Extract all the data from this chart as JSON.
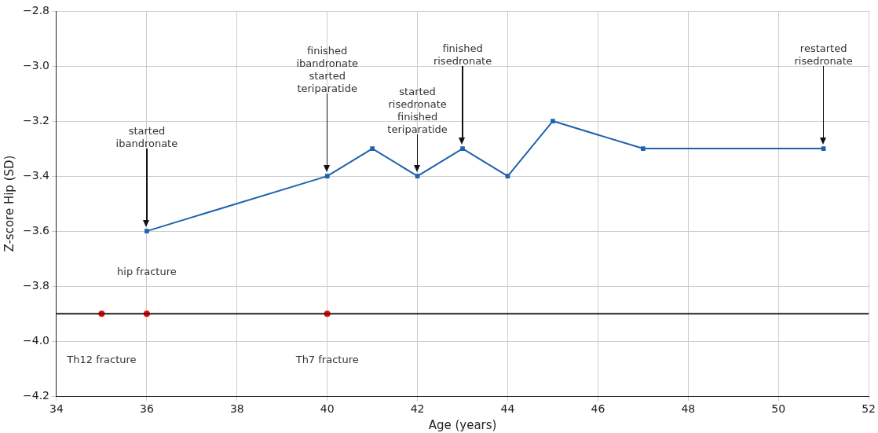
{
  "chart_data": {
    "type": "line",
    "xlabel": "Age (years)",
    "ylabel": "Z-score Hip (SD)",
    "xlim": [
      34,
      52
    ],
    "xticks": [
      34,
      36,
      38,
      40,
      42,
      44,
      46,
      48,
      50,
      52
    ],
    "ylim": [
      -4.2,
      -2.8
    ],
    "yticks": [
      {
        "value": -4.2,
        "label": "−4.2"
      },
      {
        "value": -4.0,
        "label": "−4.0"
      },
      {
        "value": -3.8,
        "label": "−3.8"
      },
      {
        "value": -3.6,
        "label": "−3.6"
      },
      {
        "value": -3.4,
        "label": "−3.4"
      },
      {
        "value": -3.2,
        "label": "−3.2"
      },
      {
        "value": -3.0,
        "label": "−3.0"
      },
      {
        "value": -2.8,
        "label": "−2.8"
      }
    ],
    "grid": true,
    "legend": false,
    "marker": "square",
    "line_style": "solid",
    "series": [
      {
        "type": "line",
        "color": "#1f62ad",
        "x": [
          36,
          40,
          41,
          42,
          43,
          44,
          45,
          47,
          51
        ],
        "values": [
          -3.6,
          -3.4,
          -3.3,
          -3.4,
          -3.3,
          -3.4,
          -3.2,
          -3.3,
          -3.3
        ]
      },
      {
        "type": "scatter",
        "color": "#ff0000",
        "marker": "circle",
        "x": [
          35,
          36,
          40
        ],
        "values": [
          -3.9,
          -3.9,
          -3.9
        ]
      }
    ],
    "ref_lines": [
      {
        "axis": "y",
        "value": -3.9,
        "color": "#222222"
      }
    ],
    "annotations": [
      "started\nibandronate",
      "finished\nibandronate\nstarted\nteriparatide",
      "started\nrisedronate\nfinished\nteriparatide",
      "finished\nrisedronate",
      "restarted\nrisedronate",
      "hip fracture",
      "Th12 fracture",
      "Th7 fracture"
    ]
  }
}
